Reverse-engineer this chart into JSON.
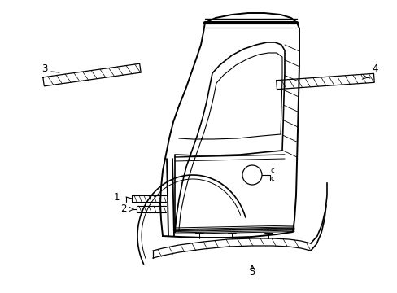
{
  "bg_color": "#ffffff",
  "line_color": "#000000",
  "label_color": "#000000",
  "fig_width": 4.89,
  "fig_height": 3.6,
  "dpi": 100
}
